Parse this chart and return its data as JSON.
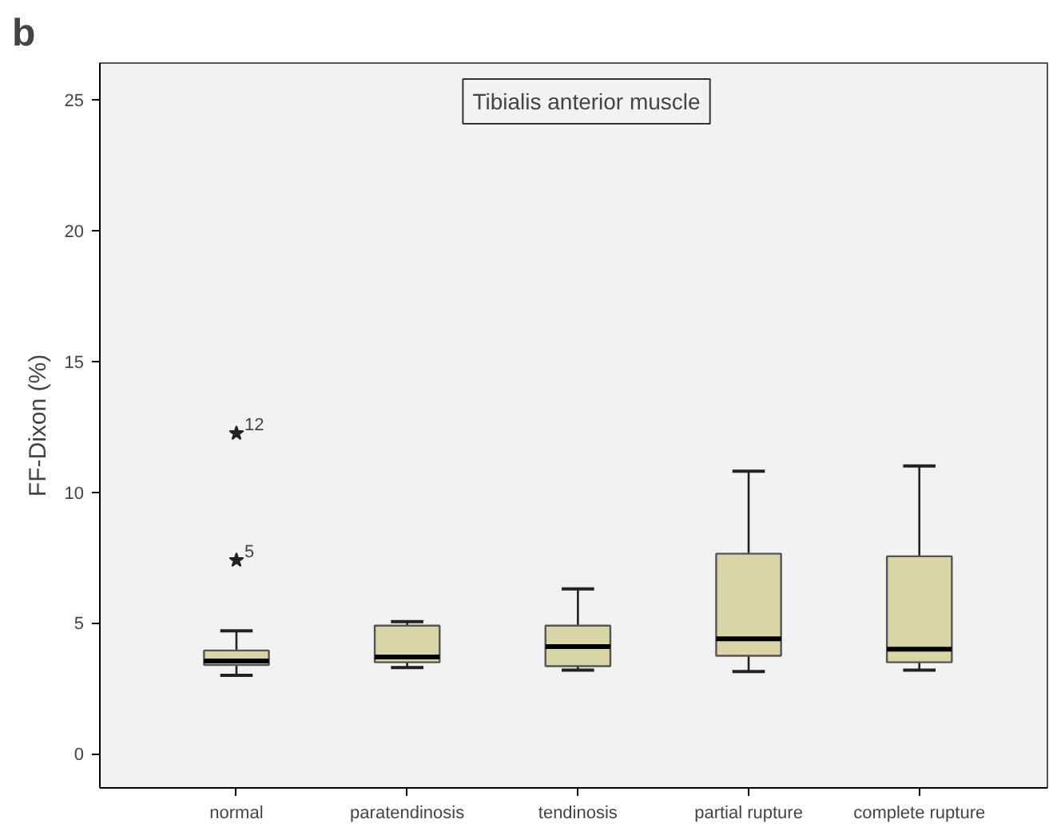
{
  "chart_data": {
    "type": "box",
    "title": "b",
    "ylabel": "FF-Dixon (%)",
    "categories": [
      "normal",
      "paratendinosis",
      "tendinosis",
      "partial rupture",
      "complete rupture"
    ],
    "boxes": [
      {
        "low": 3.0,
        "q1": 3.4,
        "median": 3.55,
        "q3": 3.95,
        "high": 4.7,
        "outliers": [
          7.4,
          12.25
        ]
      },
      {
        "low": 3.3,
        "q1": 3.5,
        "median": 3.7,
        "q3": 4.9,
        "high": 5.05
      },
      {
        "low": 3.2,
        "q1": 3.35,
        "median": 4.1,
        "q3": 4.9,
        "high": 6.3
      },
      {
        "low": 3.15,
        "q1": 3.75,
        "median": 4.4,
        "q3": 7.65,
        "high": 10.8
      },
      {
        "low": 3.2,
        "q1": 3.5,
        "median": 4.0,
        "q3": 7.55,
        "high": 11.0
      }
    ],
    "color": "#d9d5a7",
    "marker": "star",
    "ylim": [
      -1.3,
      26.4
    ],
    "yticks": [
      0,
      5,
      10,
      15,
      20,
      25
    ],
    "grid": false,
    "annotations": [
      "Tibialis anterior muscle",
      "5",
      "12"
    ]
  }
}
